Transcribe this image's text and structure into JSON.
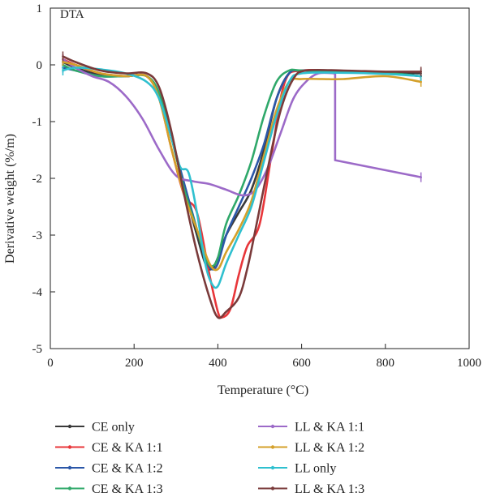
{
  "chart_data": {
    "type": "line",
    "panel_label": "DTA",
    "xlabel": "Temperature (°C)",
    "ylabel": "Derivative weight (%/m)",
    "xlim": [
      0,
      1000
    ],
    "ylim": [
      -5,
      1
    ],
    "xticks": [
      0,
      200,
      400,
      600,
      800,
      1000
    ],
    "yticks": [
      -5,
      -4,
      -3,
      -2,
      -1,
      0,
      1
    ],
    "grid": false,
    "legend_position": "bottom, two columns",
    "series": [
      {
        "name": "CE only",
        "color": "#3a3a3a",
        "x": [
          30,
          60,
          120,
          180,
          230,
          260,
          290,
          320,
          350,
          370,
          385,
          400,
          420,
          450,
          480,
          510,
          540,
          570,
          600,
          700,
          800,
          885
        ],
        "y": [
          0.05,
          -0.05,
          -0.18,
          -0.2,
          -0.2,
          -0.55,
          -1.3,
          -2.2,
          -3.0,
          -3.5,
          -3.6,
          -3.4,
          -3.0,
          -2.6,
          -2.2,
          -1.5,
          -0.6,
          -0.15,
          -0.1,
          -0.12,
          -0.13,
          -0.15
        ]
      },
      {
        "name": "CE & KA 1:1",
        "color": "#e8363a",
        "x": [
          30,
          60,
          120,
          180,
          230,
          260,
          290,
          320,
          350,
          380,
          400,
          410,
          430,
          450,
          470,
          500,
          530,
          560,
          600,
          700,
          800,
          885
        ],
        "y": [
          0.1,
          0.0,
          -0.15,
          -0.2,
          -0.2,
          -0.6,
          -1.5,
          -2.3,
          -2.6,
          -3.7,
          -4.35,
          -4.45,
          -4.3,
          -3.7,
          -3.2,
          -2.8,
          -1.5,
          -0.3,
          -0.1,
          -0.12,
          -0.15,
          -0.2
        ]
      },
      {
        "name": "CE & KA 1:2",
        "color": "#2b57a8",
        "x": [
          30,
          60,
          120,
          180,
          230,
          260,
          290,
          320,
          350,
          370,
          385,
          400,
          420,
          450,
          480,
          510,
          540,
          570,
          600,
          700,
          800,
          885
        ],
        "y": [
          -0.05,
          -0.1,
          -0.2,
          -0.2,
          -0.2,
          -0.55,
          -1.3,
          -2.1,
          -2.9,
          -3.4,
          -3.6,
          -3.5,
          -3.0,
          -2.5,
          -2.0,
          -1.4,
          -0.6,
          -0.15,
          -0.1,
          -0.12,
          -0.14,
          -0.2
        ]
      },
      {
        "name": "CE & KA 1:3",
        "color": "#2fa86a",
        "x": [
          30,
          60,
          120,
          180,
          230,
          260,
          290,
          320,
          350,
          370,
          385,
          400,
          420,
          450,
          480,
          510,
          540,
          570,
          600,
          700,
          800,
          885
        ],
        "y": [
          0.0,
          -0.1,
          -0.2,
          -0.2,
          -0.2,
          -0.5,
          -1.3,
          -2.2,
          -2.9,
          -3.4,
          -3.55,
          -3.4,
          -2.8,
          -2.3,
          -1.7,
          -0.9,
          -0.3,
          -0.1,
          -0.1,
          -0.12,
          -0.14,
          -0.2
        ]
      },
      {
        "name": "LL & KA 1:1",
        "color": "#9c6ac8",
        "x": [
          30,
          60,
          100,
          140,
          180,
          220,
          260,
          300,
          340,
          380,
          420,
          460,
          490,
          520,
          550,
          580,
          610,
          640,
          680,
          680,
          885
        ],
        "y": [
          0.1,
          -0.05,
          -0.2,
          -0.3,
          -0.55,
          -0.95,
          -1.5,
          -1.95,
          -2.05,
          -2.1,
          -2.2,
          -2.3,
          -2.2,
          -1.8,
          -1.2,
          -0.6,
          -0.3,
          -0.15,
          -0.15,
          -1.68,
          -1.98
        ]
      },
      {
        "name": "LL & KA 1:2",
        "color": "#d4a02a",
        "x": [
          30,
          60,
          120,
          180,
          230,
          260,
          290,
          320,
          350,
          380,
          400,
          420,
          450,
          480,
          510,
          540,
          570,
          600,
          650,
          700,
          800,
          885
        ],
        "y": [
          0.05,
          0.0,
          -0.15,
          -0.2,
          -0.2,
          -0.6,
          -1.5,
          -2.3,
          -2.9,
          -3.5,
          -3.6,
          -3.3,
          -2.9,
          -2.4,
          -1.6,
          -0.8,
          -0.3,
          -0.25,
          -0.25,
          -0.25,
          -0.2,
          -0.3
        ]
      },
      {
        "name": "LL only",
        "color": "#2fc0cf",
        "x": [
          30,
          60,
          120,
          180,
          230,
          260,
          290,
          310,
          330,
          350,
          370,
          385,
          400,
          420,
          450,
          480,
          510,
          540,
          570,
          600,
          700,
          800,
          885
        ],
        "y": [
          -0.1,
          -0.05,
          -0.08,
          -0.15,
          -0.3,
          -0.6,
          -1.3,
          -1.8,
          -1.9,
          -2.6,
          -3.5,
          -3.85,
          -3.9,
          -3.5,
          -3.0,
          -2.5,
          -1.7,
          -0.9,
          -0.3,
          -0.15,
          -0.14,
          -0.16,
          -0.2
        ]
      },
      {
        "name": "LL & KA 1:3",
        "color": "#7a3a3a",
        "x": [
          30,
          60,
          120,
          180,
          230,
          260,
          290,
          320,
          350,
          380,
          400,
          420,
          450,
          470,
          490,
          520,
          550,
          580,
          610,
          700,
          800,
          885
        ],
        "y": [
          0.15,
          0.05,
          -0.1,
          -0.15,
          -0.15,
          -0.4,
          -1.2,
          -2.3,
          -3.3,
          -4.1,
          -4.45,
          -4.35,
          -4.1,
          -3.6,
          -2.9,
          -1.8,
          -0.8,
          -0.25,
          -0.1,
          -0.1,
          -0.12,
          -0.12
        ]
      }
    ]
  }
}
